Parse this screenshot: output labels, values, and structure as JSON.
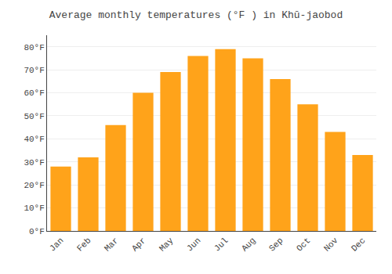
{
  "chart_data": {
    "type": "bar",
    "title": "Average monthly temperatures (°F ) in Khū-jaobod",
    "categories": [
      "Jan",
      "Feb",
      "Mar",
      "Apr",
      "May",
      "Jun",
      "Jul",
      "Aug",
      "Sep",
      "Oct",
      "Nov",
      "Dec"
    ],
    "values": [
      28,
      32,
      46,
      60,
      69,
      76,
      79,
      75,
      66,
      55,
      43,
      33
    ],
    "color": "#FFA31A",
    "ylim": [
      0,
      85
    ],
    "yticks": [
      {
        "value": 0,
        "label": "0°F"
      },
      {
        "value": 10,
        "label": "10°F"
      },
      {
        "value": 20,
        "label": "20°F"
      },
      {
        "value": 30,
        "label": "30°F"
      },
      {
        "value": 40,
        "label": "40°F"
      },
      {
        "value": 50,
        "label": "50°F"
      },
      {
        "value": 60,
        "label": "60°F"
      },
      {
        "value": 70,
        "label": "70°F"
      },
      {
        "value": 80,
        "label": "80°F"
      }
    ],
    "grid": true
  }
}
